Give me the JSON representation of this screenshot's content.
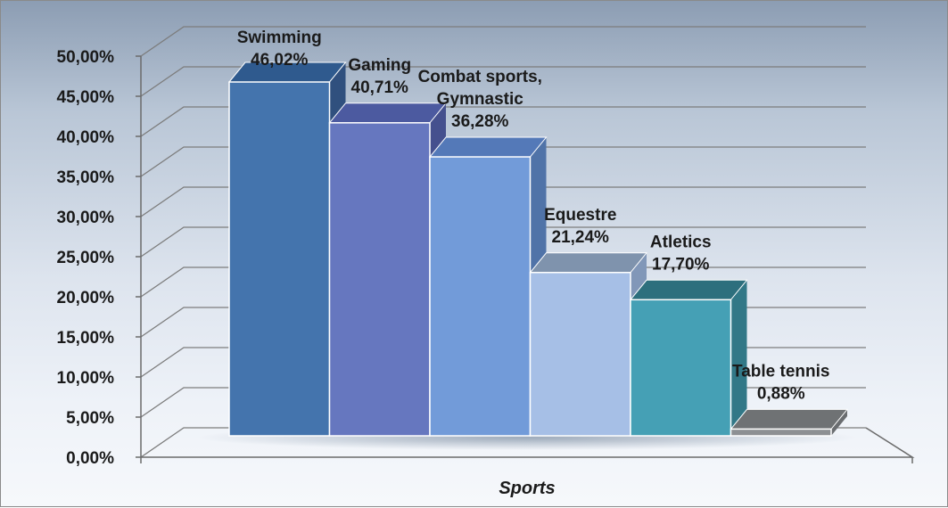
{
  "chart_data": {
    "type": "bar",
    "style": "3d-column",
    "categories": [
      "Swimming",
      "Gaming",
      "Combat sports, Gymnastic",
      "Equestre",
      "Atletics",
      "Table tennis"
    ],
    "label_lines": [
      [
        "Swimming",
        "46,02%"
      ],
      [
        "Gaming",
        "40,71%"
      ],
      [
        "Combat sports,",
        "Gymnastic",
        "36,28%"
      ],
      [
        "Equestre",
        "21,24%"
      ],
      [
        "Atletics",
        "17,70%"
      ],
      [
        "Table tennis",
        "0,88%"
      ]
    ],
    "values": [
      46.02,
      40.71,
      36.28,
      21.24,
      17.7,
      0.88
    ],
    "value_labels": [
      "46,02%",
      "40,71%",
      "36,28%",
      "21,24%",
      "17,70%",
      "0,88%"
    ],
    "xlabel": "Sports",
    "ylabel": "",
    "ylim": [
      0,
      50
    ],
    "yticks": [
      "0,00%",
      "5,00%",
      "10,00%",
      "15,00%",
      "20,00%",
      "25,00%",
      "30,00%",
      "35,00%",
      "40,00%",
      "45,00%",
      "50,00%"
    ],
    "grid": true,
    "legend": "none",
    "colors": {
      "bars": [
        "#4474ad",
        "#6677bf",
        "#729bd9",
        "#a6bfe6",
        "#45a0b5",
        "#8d9093"
      ],
      "tops": [
        "#2f5a8e",
        "#4c5aa0",
        "#5479b8",
        "#7f93ad",
        "#2d6f7d",
        "#6f7274"
      ],
      "sides": [
        "#30507e",
        "#45508e",
        "#5073a8",
        "#8197b8",
        "#327887",
        "#6a6d70"
      ],
      "grid": "#7c7c7c"
    }
  }
}
